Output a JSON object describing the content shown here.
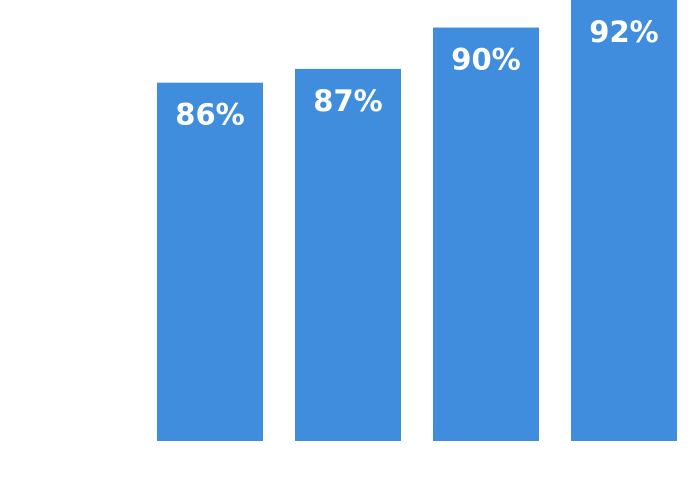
{
  "chart_data": {
    "type": "bar",
    "categories": [
      null,
      null,
      null,
      null
    ],
    "values": [
      86,
      87,
      90,
      92
    ],
    "value_labels": [
      "86%",
      "87%",
      "90%",
      "92%"
    ],
    "color": "#3f8ddc",
    "ylim": [
      60,
      92
    ]
  }
}
